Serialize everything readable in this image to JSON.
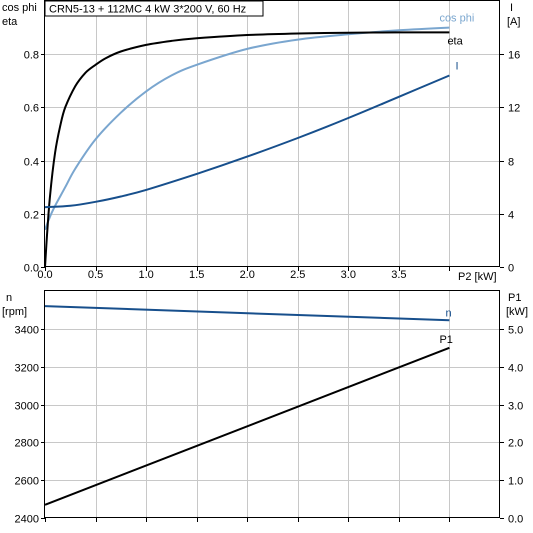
{
  "title": "CRN5-13 + 112MC   4 kW   3*200 V, 60 Hz",
  "colors": {
    "cosphi": "#7aa6cf",
    "eta": "#000000",
    "current": "#174f8c",
    "speed": "#174f8c",
    "p1": "#000000",
    "grid": "#c8c8c8",
    "axis": "#000000"
  },
  "chart_data": [
    {
      "type": "line",
      "xlabel": "P2 [kW]",
      "xlim": [
        0,
        4.5
      ],
      "xticks": [
        "0.0",
        "0.5",
        "1.0",
        "1.5",
        "2.0",
        "2.5",
        "3.0",
        "3.5"
      ],
      "left_axis": {
        "label_line1": "cos phi",
        "label_line2": "eta",
        "ylim": [
          0,
          1.0
        ],
        "ticks": [
          "0.0",
          "0.2",
          "0.4",
          "0.6",
          "0.8"
        ]
      },
      "right_axis": {
        "label_line1": "I",
        "label_line2": "[A]",
        "ylim": [
          0,
          20
        ],
        "ticks": [
          "0",
          "4",
          "8",
          "12",
          "16"
        ]
      },
      "grid": true,
      "series": [
        {
          "name": "cos phi",
          "axis": "left",
          "x": [
            0,
            0.05,
            0.1,
            0.2,
            0.3,
            0.5,
            0.75,
            1.0,
            1.25,
            1.5,
            2.0,
            2.5,
            3.0,
            3.5,
            4.0
          ],
          "y": [
            0.14,
            0.19,
            0.23,
            0.3,
            0.37,
            0.48,
            0.58,
            0.66,
            0.72,
            0.76,
            0.82,
            0.855,
            0.875,
            0.89,
            0.9
          ]
        },
        {
          "name": "eta",
          "axis": "left",
          "x": [
            0,
            0.02,
            0.05,
            0.1,
            0.15,
            0.2,
            0.3,
            0.4,
            0.5,
            0.6,
            0.75,
            1.0,
            1.25,
            1.5,
            2.0,
            2.5,
            3.0,
            3.5,
            4.0
          ],
          "y": [
            0.0,
            0.12,
            0.27,
            0.43,
            0.53,
            0.6,
            0.68,
            0.73,
            0.76,
            0.785,
            0.81,
            0.835,
            0.85,
            0.86,
            0.872,
            0.878,
            0.881,
            0.882,
            0.882
          ]
        },
        {
          "name": "I",
          "axis": "right",
          "x": [
            0,
            0.25,
            0.5,
            0.75,
            1.0,
            1.5,
            2.0,
            2.5,
            3.0,
            3.5,
            4.0
          ],
          "y": [
            4.5,
            4.6,
            4.9,
            5.3,
            5.8,
            7.0,
            8.3,
            9.7,
            11.2,
            12.8,
            14.4
          ]
        }
      ]
    },
    {
      "type": "line",
      "xlim": [
        0,
        4.5
      ],
      "left_axis": {
        "label_line1": "n",
        "label_line2": "[rpm]",
        "ylim": [
          2400,
          3600
        ],
        "ticks": [
          "2400",
          "2600",
          "2800",
          "3000",
          "3200",
          "3400"
        ]
      },
      "right_axis": {
        "label_line1": "P1",
        "label_line2": "[kW]",
        "ylim": [
          0,
          6
        ],
        "ticks": [
          "0.0",
          "1.0",
          "2.0",
          "3.0",
          "4.0",
          "5.0"
        ]
      },
      "grid": true,
      "series": [
        {
          "name": "n",
          "axis": "left",
          "x": [
            0,
            4.0
          ],
          "y": [
            3520,
            3445
          ]
        },
        {
          "name": "P1",
          "axis": "right",
          "x": [
            0,
            4.0
          ],
          "y": [
            0.35,
            4.5
          ]
        }
      ]
    }
  ]
}
